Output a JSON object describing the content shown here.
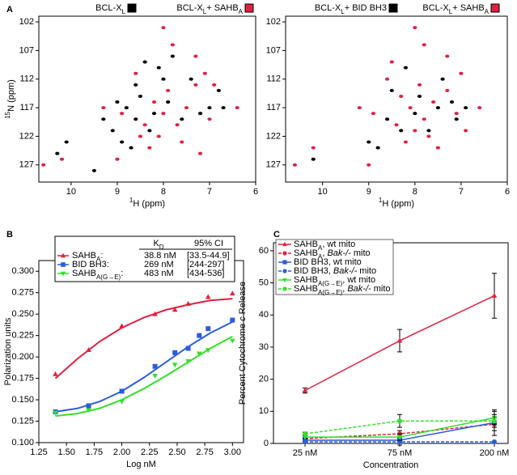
{
  "chart_data": [
    {
      "type": "scatter",
      "panel": "A",
      "xlabel": [
        {
          "sup": "1"
        },
        {
          "text": "H (ppm)"
        }
      ],
      "ylabel": [
        {
          "sup": "15"
        },
        {
          "text": "N (ppm)"
        }
      ],
      "xlim": [
        10.7,
        6
      ],
      "ylim": [
        130,
        101
      ],
      "xticks": [
        10,
        9,
        8,
        7,
        6
      ],
      "yticks": [
        102,
        107,
        112,
        117,
        122,
        127
      ],
      "series": [
        {
          "name": [
            {
              "text": "BCL-X"
            },
            {
              "sub": "L"
            }
          ],
          "color": "#000000",
          "x": [
            8.5,
            8.8,
            8.2,
            7.9,
            8.6,
            9.0,
            8.3,
            7.6,
            7.2,
            8.0,
            7.4,
            9.1,
            8.9,
            10.1,
            10.3,
            9.5,
            8.7,
            7.0,
            6.8,
            8.1,
            7.8,
            8.4,
            6.7,
            9.3,
            8.6
          ],
          "y": [
            115,
            117,
            118,
            116,
            119,
            116,
            121,
            119,
            118,
            112,
            112,
            121,
            123,
            123,
            125,
            128,
            124,
            117,
            114,
            110,
            108,
            109,
            117,
            119,
            113
          ]
        },
        {
          "name": [
            {
              "text": "BCL-X"
            },
            {
              "sub": "L"
            },
            {
              "text": "+ SAHB"
            },
            {
              "sub": "A"
            }
          ],
          "color": "#e0213f",
          "x": [
            8.2,
            8.0,
            7.7,
            8.4,
            7.5,
            8.1,
            7.9,
            7.3,
            7.1,
            8.6,
            8.9,
            7.6,
            8.3,
            7.0,
            6.9,
            7.8,
            8.0,
            7.3,
            10.2,
            10.6,
            9.3,
            8.5,
            7.2,
            6.4,
            9.0
          ],
          "y": [
            116,
            118,
            120,
            120,
            117,
            122,
            114,
            113,
            111,
            111,
            118,
            123,
            124,
            119,
            113,
            106,
            103,
            108,
            126,
            127,
            117,
            122,
            125,
            117,
            126
          ]
        }
      ]
    },
    {
      "type": "scatter",
      "xlabel": [
        {
          "sup": "1"
        },
        {
          "text": "H (ppm)"
        }
      ],
      "xlim": [
        10.8,
        6
      ],
      "ylim": [
        130,
        101
      ],
      "xticks": [
        10,
        9,
        8,
        7,
        6
      ],
      "yticks": [
        102,
        107,
        112,
        117,
        122,
        127
      ],
      "series": [
        {
          "name": [
            {
              "text": "BCL-X"
            },
            {
              "sub": "L"
            },
            {
              "text": "+ BID BH3"
            }
          ],
          "color": "#000000",
          "x": [
            8.0,
            7.5,
            8.3,
            7.2,
            7.9,
            8.6,
            9.0,
            10.2,
            7.4,
            8.2,
            7.1,
            8.8,
            6.9,
            8.5,
            7.7
          ],
          "y": [
            118,
            117,
            121,
            116,
            115,
            119,
            123,
            126,
            112,
            110,
            119,
            124,
            117,
            114,
            121
          ]
        },
        {
          "name": [
            {
              "text": "BCL-X"
            },
            {
              "sub": "L"
            },
            {
              "text": "+ SAHB"
            },
            {
              "sub": "A"
            }
          ],
          "color": "#e0213f",
          "x": [
            8.1,
            7.8,
            8.4,
            7.6,
            8.0,
            7.3,
            7.0,
            8.6,
            8.9,
            7.8,
            8.0,
            7.3,
            10.2,
            10.6,
            8.2,
            7.5,
            7.1,
            6.6,
            9.2,
            8.5,
            7.9,
            9.0,
            8.3,
            7.7,
            6.9
          ],
          "y": [
            117,
            119,
            120,
            116,
            121,
            114,
            111,
            112,
            118,
            106,
            103,
            108,
            124,
            127,
            123,
            124,
            118,
            117,
            117,
            109,
            113,
            127,
            115,
            122,
            121
          ]
        }
      ]
    },
    {
      "type": "fit",
      "panel": "B",
      "xlabel": [
        {
          "text": "Log nM"
        }
      ],
      "ylabel": [
        {
          "text": "Polarization units"
        }
      ],
      "xlim": [
        1.25,
        3.1
      ],
      "ylim": [
        0.1,
        0.3125
      ],
      "xticks": [
        {
          "value": 1.25,
          "label": "1.25"
        },
        {
          "value": 1.5,
          "label": "1.50"
        },
        {
          "value": 1.75,
          "label": "1.75"
        },
        {
          "value": 2,
          "label": "2.00"
        },
        {
          "value": 2.25,
          "label": "2.25"
        },
        {
          "value": 2.5,
          "label": "2.50"
        },
        {
          "value": 2.75,
          "label": "2.75"
        },
        {
          "value": 3,
          "label": "3.00"
        }
      ],
      "yticks": [
        {
          "value": 0.1,
          "label": "0.100"
        },
        {
          "value": 0.125,
          "label": "0.125"
        },
        {
          "value": 0.15,
          "label": "0.150"
        },
        {
          "value": 0.175,
          "label": "0.175"
        },
        {
          "value": 0.2,
          "label": "0.200"
        },
        {
          "value": 0.225,
          "label": "0.225"
        },
        {
          "value": 0.25,
          "label": "0.250"
        },
        {
          "value": 0.275,
          "label": "0.275"
        },
        {
          "value": 0.3,
          "label": "0.300"
        }
      ],
      "table_header": [
        [
          {
            "text": "K"
          },
          {
            "sub": "D"
          }
        ],
        [
          {
            "text": "95% CI"
          }
        ]
      ],
      "fit_x": [
        1.4,
        1.6,
        1.8,
        2.0,
        2.2,
        2.4,
        2.6,
        2.8,
        3.0
      ],
      "series": [
        {
          "name": [
            {
              "text": "SAHB"
            },
            {
              "sub": "A"
            },
            {
              "text": ":"
            }
          ],
          "color": "#e0213f",
          "marker": "triangle",
          "kd": "38.8 nM",
          "ci": "[33.5-44.9]",
          "x": [
            1.4,
            1.7,
            2.0,
            2.3,
            2.48,
            2.6,
            2.78,
            3.0
          ],
          "values": [
            0.18,
            0.208,
            0.236,
            0.25,
            0.255,
            0.262,
            0.27,
            0.274
          ],
          "fit": [
            0.175,
            0.198,
            0.218,
            0.234,
            0.246,
            0.255,
            0.261,
            0.266,
            0.268
          ]
        },
        {
          "name": [
            {
              "text": "BID BH3:"
            }
          ],
          "color": "#2a5cdb",
          "marker": "square",
          "kd": "269 nM",
          "ci": "[244-297]",
          "x": [
            1.4,
            1.7,
            2.0,
            2.3,
            2.48,
            2.6,
            2.7,
            2.78,
            3.0
          ],
          "values": [
            0.136,
            0.143,
            0.16,
            0.189,
            0.205,
            0.21,
            0.225,
            0.233,
            0.243
          ],
          "fit": [
            0.136,
            0.14,
            0.148,
            0.16,
            0.176,
            0.194,
            0.212,
            0.228,
            0.241
          ]
        },
        {
          "name": [
            {
              "text": "SAHB"
            },
            {
              "sub": "A(G→E)"
            },
            {
              "text": ":"
            }
          ],
          "color": "#33e02a",
          "marker": "triangle-down",
          "kd": "483 nM",
          "ci": "[434-536]",
          "x": [
            1.4,
            1.7,
            2.0,
            2.3,
            2.48,
            2.6,
            2.7,
            2.78,
            3.0
          ],
          "values": [
            0.135,
            0.138,
            0.148,
            0.178,
            0.191,
            0.195,
            0.204,
            0.208,
            0.219
          ],
          "fit": [
            0.131,
            0.134,
            0.14,
            0.15,
            0.163,
            0.178,
            0.194,
            0.21,
            0.224
          ]
        }
      ]
    },
    {
      "type": "line",
      "panel": "C",
      "xlabel": [
        {
          "text": "Concentration"
        }
      ],
      "ylabel": [
        {
          "text": "Percent Cytochrome "
        },
        {
          "italic": "c"
        },
        {
          "text": " Release"
        }
      ],
      "categories": [
        "25 nM",
        "75 nM",
        "200 nM"
      ],
      "ylim": [
        0,
        62.5
      ],
      "yticks": [
        0,
        10,
        20,
        30,
        40,
        50,
        60
      ],
      "series": [
        {
          "name": [
            {
              "text": "SAHB"
            },
            {
              "sub": "A"
            },
            {
              "text": ", wt mito"
            }
          ],
          "color": "#e0213f",
          "marker": "triangle",
          "dashed": false,
          "values": [
            16.5,
            32,
            46
          ],
          "errors": [
            0.8,
            3.5,
            7
          ]
        },
        {
          "name": [
            {
              "text": "SAHB"
            },
            {
              "sub": "A"
            },
            {
              "text": ", "
            },
            {
              "italic": "Bak-/-"
            },
            {
              "text": " mito"
            }
          ],
          "color": "#e0213f",
          "marker": "circle",
          "dashed": true,
          "values": [
            1.5,
            3,
            6
          ],
          "errors": [
            0.5,
            1,
            2
          ]
        },
        {
          "name": [
            {
              "text": "BID BH3, wt mito"
            }
          ],
          "color": "#2a5cdb",
          "marker": "square",
          "dashed": false,
          "values": [
            1,
            1,
            6.5
          ],
          "errors": [
            0.5,
            1.5,
            4
          ]
        },
        {
          "name": [
            {
              "text": "BID BH3, "
            },
            {
              "italic": "Bak-/-"
            },
            {
              "text": " mito"
            }
          ],
          "color": "#2a5cdb",
          "marker": "circle",
          "dashed": true,
          "values": [
            0.5,
            0.5,
            0.5
          ]
        },
        {
          "name": [
            {
              "text": "SAHB"
            },
            {
              "sub": "A(G→E)"
            },
            {
              "text": ", wt mito"
            }
          ],
          "color": "#33e02a",
          "marker": "triangle-down",
          "dashed": false,
          "values": [
            2,
            2,
            8
          ],
          "errors": [
            0.5,
            1,
            2
          ]
        },
        {
          "name": [
            {
              "text": "SAHB"
            },
            {
              "sub": "A(G→E)"
            },
            {
              "text": ", "
            },
            {
              "italic": "Bak-/-"
            },
            {
              "text": " mito"
            }
          ],
          "color": "#33e02a",
          "marker": "circle",
          "dashed": true,
          "values": [
            3,
            7,
            7
          ],
          "errors": [
            0.5,
            2,
            2
          ]
        }
      ]
    }
  ]
}
